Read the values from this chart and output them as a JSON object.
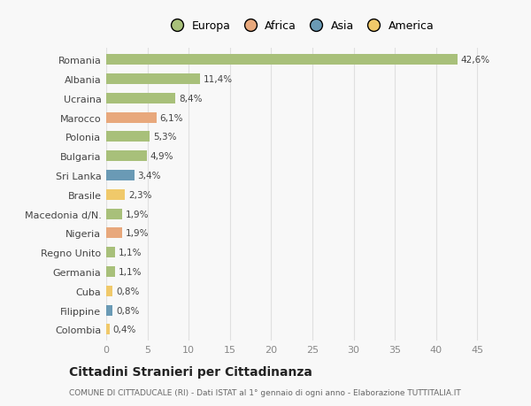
{
  "countries": [
    "Romania",
    "Albania",
    "Ucraina",
    "Marocco",
    "Polonia",
    "Bulgaria",
    "Sri Lanka",
    "Brasile",
    "Macedonia d/N.",
    "Nigeria",
    "Regno Unito",
    "Germania",
    "Cuba",
    "Filippine",
    "Colombia"
  ],
  "values": [
    42.6,
    11.4,
    8.4,
    6.1,
    5.3,
    4.9,
    3.4,
    2.3,
    1.9,
    1.9,
    1.1,
    1.1,
    0.8,
    0.8,
    0.4
  ],
  "labels": [
    "42,6%",
    "11,4%",
    "8,4%",
    "6,1%",
    "5,3%",
    "4,9%",
    "3,4%",
    "2,3%",
    "1,9%",
    "1,9%",
    "1,1%",
    "1,1%",
    "0,8%",
    "0,8%",
    "0,4%"
  ],
  "continents": [
    "Europa",
    "Europa",
    "Europa",
    "Africa",
    "Europa",
    "Europa",
    "Asia",
    "America",
    "Europa",
    "Africa",
    "Europa",
    "Europa",
    "America",
    "Asia",
    "America"
  ],
  "colors": {
    "Europa": "#a8c07a",
    "Africa": "#e8a87c",
    "Asia": "#6a9ab5",
    "America": "#f0c96a"
  },
  "legend_colors": {
    "Europa": "#a8c07a",
    "Africa": "#e8a87c",
    "Asia": "#6a9ab5",
    "America": "#f0c96a"
  },
  "title": "Cittadini Stranieri per Cittadinanza",
  "subtitle": "COMUNE DI CITTADUCALE (RI) - Dati ISTAT al 1° gennaio di ogni anno - Elaborazione TUTTITALIA.IT",
  "xlim": [
    0,
    47
  ],
  "xticks": [
    0,
    5,
    10,
    15,
    20,
    25,
    30,
    35,
    40,
    45
  ],
  "background_color": "#f8f8f8",
  "grid_color": "#e0e0e0",
  "bar_height": 0.55
}
